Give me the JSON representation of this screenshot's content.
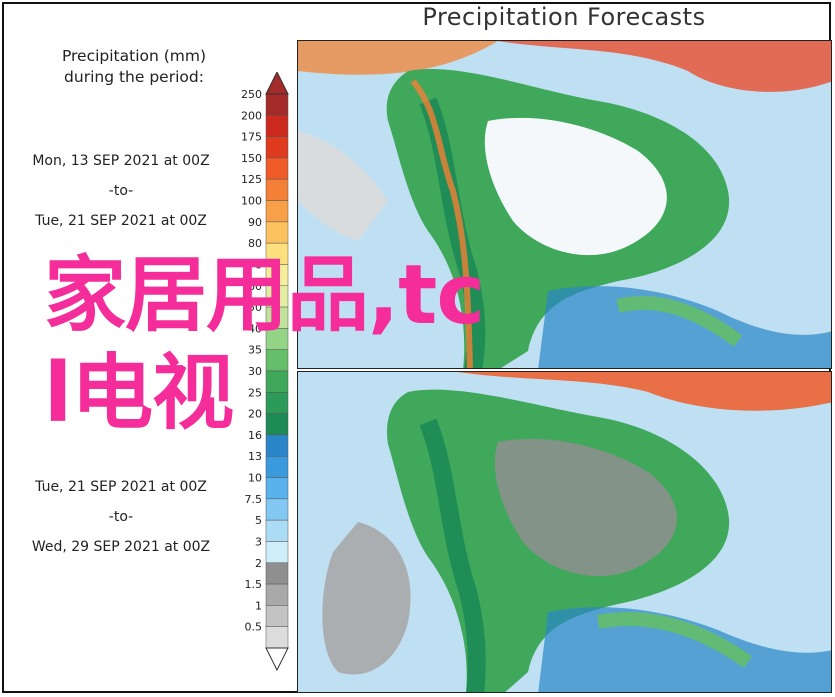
{
  "title": "Precipitation Forecasts",
  "legend": {
    "title_line1": "Precipitation (mm)",
    "title_line2": "during the period:",
    "ticks": [
      "250",
      "200",
      "175",
      "150",
      "125",
      "100",
      "90",
      "80",
      "70",
      "60",
      "50",
      "40",
      "35",
      "30",
      "25",
      "20",
      "16",
      "13",
      "10",
      "7.5",
      "5",
      "3",
      "2",
      "1.5",
      "1",
      "0.5"
    ],
    "colors": [
      "#a52a2a",
      "#cc2a1e",
      "#e03a1e",
      "#ee5a28",
      "#f47f36",
      "#f8a048",
      "#fbc15e",
      "#fde07e",
      "#f7ee9a",
      "#e2eea2",
      "#bfe39a",
      "#94d486",
      "#64be6a",
      "#3fa85a",
      "#2c9a58",
      "#1e8a55",
      "#2a86c8",
      "#3a9ade",
      "#59b2ec",
      "#83c8f2",
      "#abdcf6",
      "#cfeefa",
      "#8f8f8f",
      "#a9a9a9",
      "#c3c3c3",
      "#dcdcdc"
    ]
  },
  "periods": [
    {
      "start": "Mon, 13 SEP 2021 at 00Z",
      "sep": "-to-",
      "end": "Tue, 21 SEP 2021 at 00Z"
    },
    {
      "start": "Tue, 21 SEP 2021 at 00Z",
      "sep": "-to-",
      "end": "Wed, 29 SEP 2021 at 00Z"
    }
  ],
  "watermark": {
    "line1": "家居用品,tc",
    "line2": "l电视"
  },
  "colors": {
    "ocean": "#bfe0f2",
    "land_dry": "#f4f8fb",
    "watermark": "#f52d9a"
  }
}
